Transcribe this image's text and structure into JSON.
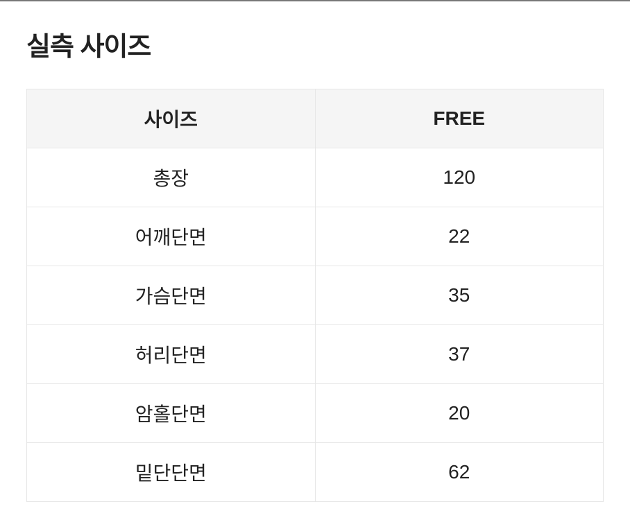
{
  "title": "실측 사이즈",
  "table": {
    "headers": [
      "사이즈",
      "FREE"
    ],
    "rows": [
      [
        "총장",
        "120"
      ],
      [
        "어깨단면",
        "22"
      ],
      [
        "가슴단면",
        "35"
      ],
      [
        "허리단면",
        "37"
      ],
      [
        "암홀단면",
        "20"
      ],
      [
        "밑단단면",
        "62"
      ]
    ]
  }
}
